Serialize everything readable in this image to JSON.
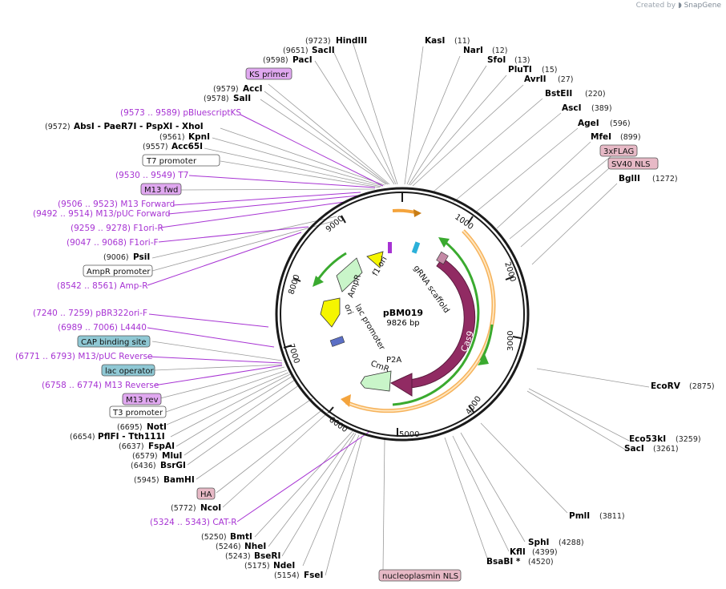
{
  "brand": {
    "created_by": "Created by",
    "name": "SnapGene"
  },
  "plasmid": {
    "name": "pBM019",
    "size": "9826 bp"
  },
  "ticks": [
    "1000",
    "2000",
    "3000",
    "4000",
    "5000",
    "6000",
    "7000",
    "8000",
    "9000"
  ],
  "inner_labels": [
    "f1 ori",
    "gRNA scaffold",
    "Cas9",
    "P2A",
    "CmR",
    "lac promoter",
    "ori",
    "AmpR"
  ],
  "enzymes_top": [
    {
      "pos": "(9723)",
      "name": "HindIII"
    },
    {
      "pos": "(9651)",
      "name": "SacII"
    },
    {
      "pos": "(9598)",
      "name": "PacI"
    }
  ],
  "enzymes_right": [
    {
      "name": "KasI",
      "pos": "(11)"
    },
    {
      "name": "NarI",
      "pos": "(12)"
    },
    {
      "name": "SfoI",
      "pos": "(13)"
    },
    {
      "name": "PluTI",
      "pos": "(15)"
    },
    {
      "name": "AvrII",
      "pos": "(27)"
    },
    {
      "name": "BstEII",
      "pos": "(220)"
    },
    {
      "name": "AscI",
      "pos": "(389)"
    },
    {
      "name": "AgeI",
      "pos": "(596)"
    },
    {
      "name": "MfeI",
      "pos": "(899)"
    },
    {
      "name": "BglII",
      "pos": "(1272)"
    },
    {
      "name": "EcoRV",
      "pos": "(2875)"
    },
    {
      "name": "Eco53kI",
      "pos": "(3259)"
    },
    {
      "name": "SacI",
      "pos": "(3261)"
    },
    {
      "name": "PmlI",
      "pos": "(3811)"
    },
    {
      "name": "SphI",
      "pos": "(4288)"
    },
    {
      "name": "KflI",
      "pos": "(4399)"
    },
    {
      "name": "BsaBI *",
      "pos": "(4520)"
    }
  ],
  "features_right": [
    "3xFLAG",
    "SV40 NLS"
  ],
  "left_labels": {
    "ks_primer": "KS primer",
    "acci": {
      "pos": "(9579)",
      "name": "AccI"
    },
    "sali": {
      "pos": "(9578)",
      "name": "SalI"
    },
    "pbluescript": "(9573 .. 9589)  pBluescriptKS",
    "absi_pos": "(9572)",
    "absi_names": "AbsI  - PaeR7I  - PspXI  - XhoI",
    "kpni": {
      "pos": "(9561)",
      "name": "KpnI"
    },
    "acc65i": {
      "pos": "(9557)",
      "name": "Acc65I"
    },
    "t7_promoter": "T7 promoter",
    "t7": "(9530 .. 9549)  T7",
    "m13_fwd": "M13 fwd",
    "m13_forward": "(9506 .. 9523)  M13 Forward",
    "m13_puc_forward": "(9492 .. 9514)  M13/pUC Forward",
    "f1ori_r": "(9259 .. 9278)  F1ori-R",
    "f1ori_f": "(9047 .. 9068)  F1ori-F",
    "psii": {
      "pos": "(9006)",
      "name": "PsiI"
    },
    "ampr_promoter": "AmpR promoter",
    "amp_r": "(8542 .. 8561)  Amp-R",
    "pbr322": "(7240 .. 7259)  pBR322ori-F",
    "l4440": "(6989 .. 7006)  L4440",
    "cap": "CAP binding site",
    "m13_puc_reverse": "(6771 .. 6793)  M13/pUC Reverse",
    "lac_operator": "lac operator",
    "m13_reverse": "(6758 .. 6774)  M13 Reverse",
    "m13_rev": "M13 rev",
    "t3_promoter": "T3 promoter",
    "noti": {
      "pos": "(6695)",
      "name": "NotI"
    },
    "pflfi_pos": "(6654)",
    "pflfi_names": "PflFI  - Tth111I",
    "fspai": {
      "pos": "(6637)",
      "name": "FspAI"
    },
    "mlui": {
      "pos": "(6579)",
      "name": "MluI"
    },
    "bsrgi": {
      "pos": "(6436)",
      "name": "BsrGI"
    },
    "bamhi": {
      "pos": "(5945)",
      "name": "BamHI"
    },
    "ha": "HA",
    "ncoi": {
      "pos": "(5772)",
      "name": "NcoI"
    },
    "cat_r": "(5324 .. 5343)  CAT-R",
    "bmti": {
      "pos": "(5250)",
      "name": "BmtI"
    },
    "nhei": {
      "pos": "(5246)",
      "name": "NheI"
    },
    "bseri": {
      "pos": "(5243)",
      "name": "BseRI"
    },
    "ndei": {
      "pos": "(5175)",
      "name": "NdeI"
    },
    "fsei": {
      "pos": "(5154)",
      "name": "FseI"
    },
    "nucleoplasmin": "nucleoplasmin NLS"
  },
  "colors": {
    "backbone": "#1a1a1a",
    "primer": "#a733d3",
    "cas9": "#912b63",
    "orange_arc": "#f4a43d",
    "green_arc": "#3aaa2f",
    "ampr": "#c9f5c9",
    "ori": "#f5f500",
    "ks_box": "#e0a8f0",
    "cap_box": "#8fc8d4",
    "nls_box": "#e7b9c6"
  }
}
